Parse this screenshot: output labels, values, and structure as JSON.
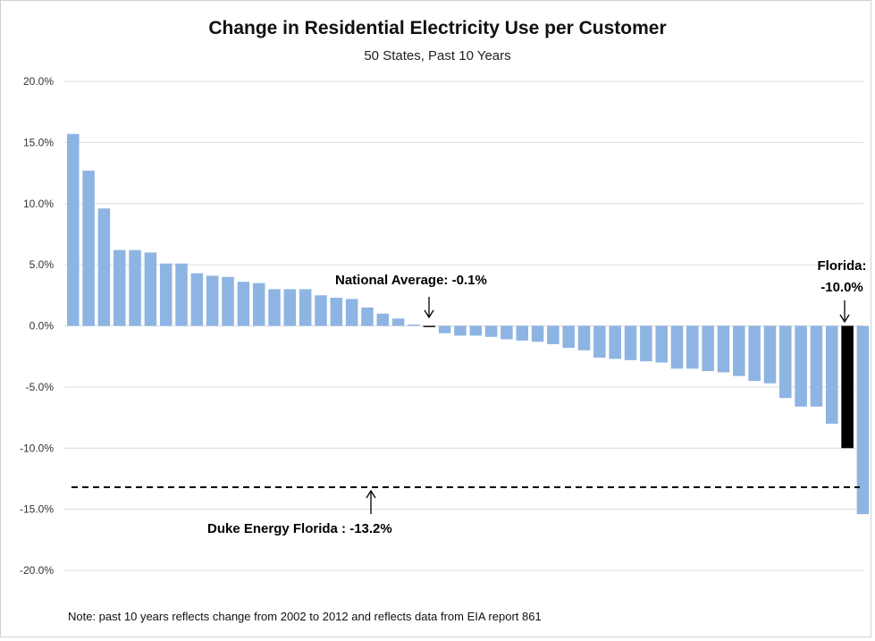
{
  "chart_data": {
    "type": "bar",
    "title": "Change in Residential Electricity Use per Customer",
    "subtitle": "50 States, Past 10 Years",
    "ylim": [
      -20,
      20
    ],
    "yticks": [
      "20.0%",
      "15.0%",
      "10.0%",
      "5.0%",
      "0.0%",
      "-5.0%",
      "-10.0%",
      "-15.0%",
      "-20.0%"
    ],
    "grid": true,
    "bar_color": "#8db4e2",
    "highlight_color": "#000000",
    "values": [
      15.7,
      12.7,
      9.6,
      6.2,
      6.2,
      6.0,
      5.1,
      5.1,
      4.3,
      4.1,
      4.0,
      3.6,
      3.5,
      3.0,
      3.0,
      3.0,
      2.5,
      2.3,
      2.2,
      1.5,
      1.0,
      0.6,
      0.1,
      -0.1,
      -0.6,
      -0.8,
      -0.8,
      -0.9,
      -1.1,
      -1.2,
      -1.3,
      -1.5,
      -1.8,
      -2.0,
      -2.6,
      -2.7,
      -2.8,
      -2.9,
      -3.0,
      -3.5,
      -3.5,
      -3.7,
      -3.8,
      -4.1,
      -4.5,
      -4.7,
      -5.9,
      -6.6,
      -6.6,
      -8.0,
      -10.0,
      -15.4
    ],
    "highlight": [
      {
        "index": 23,
        "label": "National Average:  -0.1%",
        "value": -0.1
      },
      {
        "index": 50,
        "label_line1": "Florida:",
        "label_line2": "-10.0%",
        "value": -10.0
      }
    ],
    "reference_line": {
      "value": -13.2,
      "label": "Duke Energy Florida :  -13.2%",
      "style": "dashed"
    },
    "note": "Note: past 10 years reflects change from 2002 to 2012 and reflects data from EIA report 861"
  }
}
